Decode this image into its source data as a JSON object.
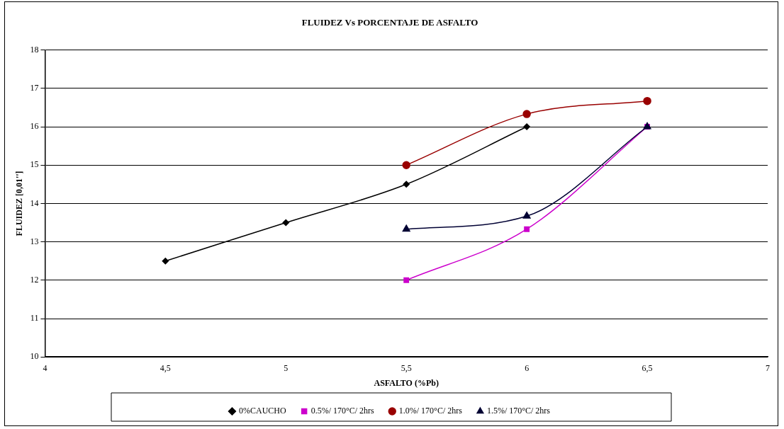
{
  "chart_data": {
    "type": "line",
    "title": "FLUIDEZ Vs PORCENTAJE DE ASFALTO",
    "xlabel": "ASFALTO (%Pb)",
    "ylabel": "FLUIDEZ [0,01'']",
    "xlim": [
      4,
      7
    ],
    "xticks": [
      4,
      {
        "value": 4.5,
        "label": "4,5"
      },
      5,
      {
        "value": 5.5,
        "label": "5,5"
      },
      6,
      {
        "value": 6.5,
        "label": "6,5"
      },
      7
    ],
    "ylim": [
      10,
      18
    ],
    "yticks": [
      10,
      11,
      12,
      13,
      14,
      15,
      16,
      17,
      18
    ],
    "grid": "y",
    "legend": "bottom",
    "line_style": "solid",
    "series": [
      {
        "name": "0%CAUCHO",
        "color": "#000000",
        "marker": "diamond",
        "x": [
          4.5,
          5,
          5.5,
          6
        ],
        "values": [
          12.5,
          13.5,
          14.5,
          16
        ]
      },
      {
        "name": "0.5%/ 170°C/ 2hrs",
        "color": "#cc00cc",
        "marker": "square",
        "x": [
          5.5,
          6,
          6.5
        ],
        "values": [
          12,
          13.33,
          16
        ]
      },
      {
        "name": "1.0%/ 170°C/ 2hrs",
        "color": "#990000",
        "marker": "circle",
        "x": [
          5.5,
          6,
          6.5
        ],
        "values": [
          15,
          16.33,
          16.67
        ]
      },
      {
        "name": "1.5%/ 170°C/ 2hrs",
        "color": "#000033",
        "marker": "triangle",
        "x": [
          5.5,
          6,
          6.5
        ],
        "values": [
          13.33,
          13.67,
          16
        ]
      }
    ]
  }
}
